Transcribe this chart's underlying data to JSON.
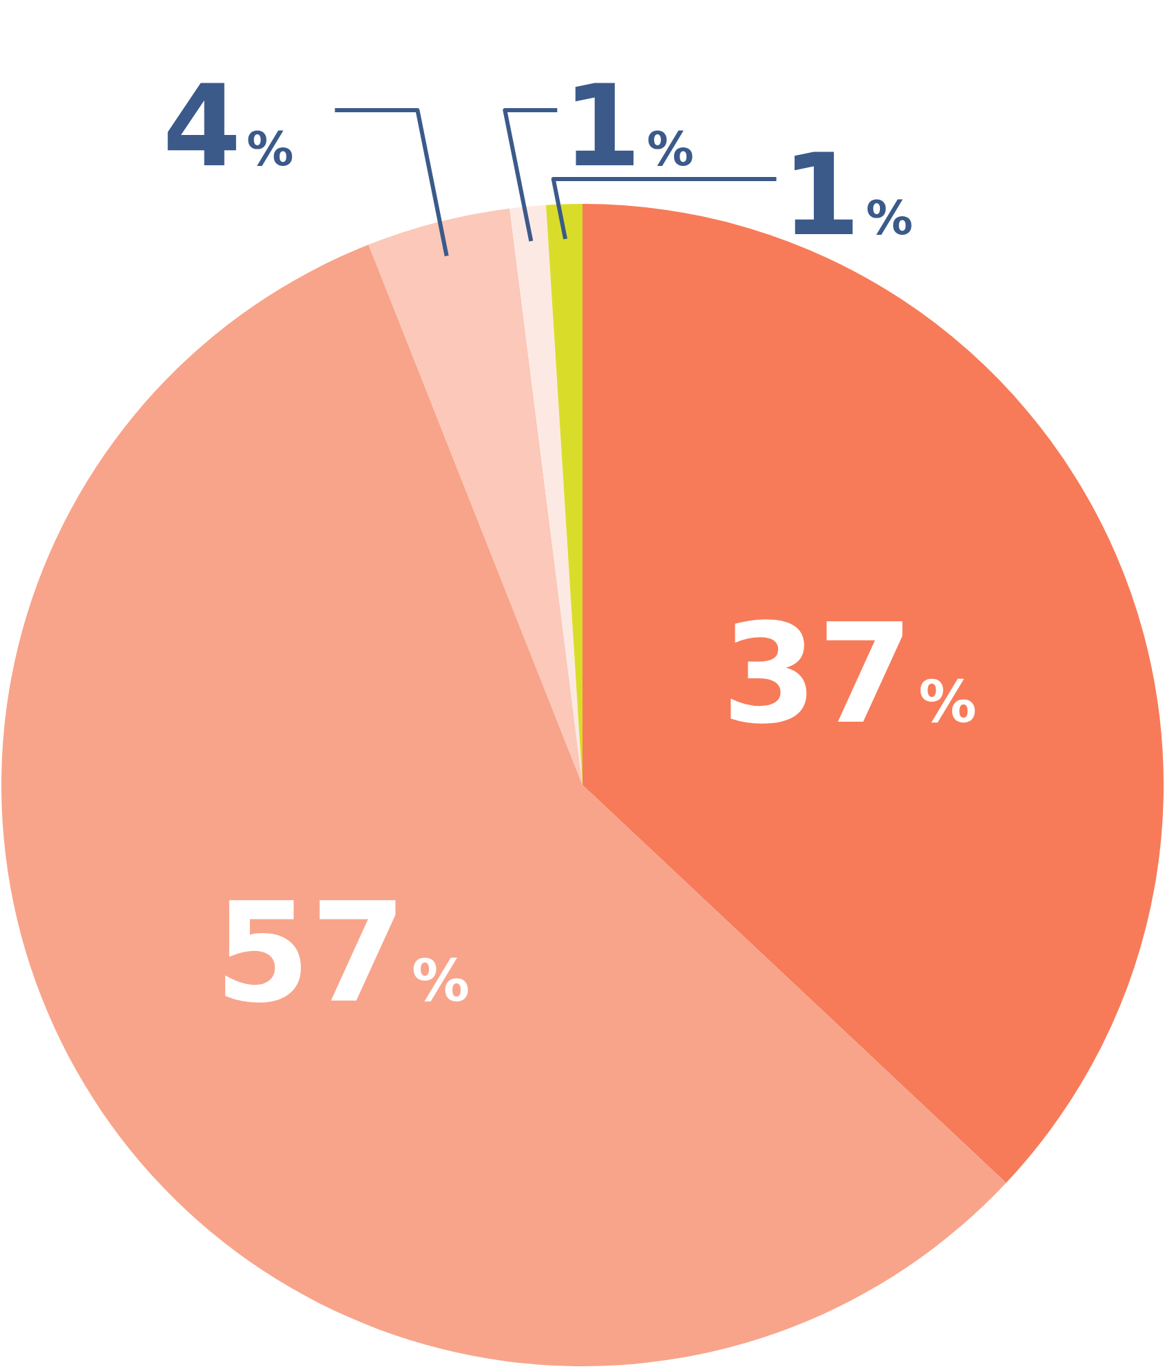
{
  "chart_data": {
    "type": "pie",
    "categories": [
      null,
      null,
      null,
      null,
      null
    ],
    "values": [
      37,
      57,
      4,
      1,
      1
    ],
    "colors": [
      "#f77b59",
      "#f8a48a",
      "#fbc8b9",
      "#fde9e4",
      "#d9dd2a"
    ],
    "value_labels": [
      "37%",
      "57%",
      "4%",
      "1%",
      "1%"
    ],
    "legend": false
  }
}
